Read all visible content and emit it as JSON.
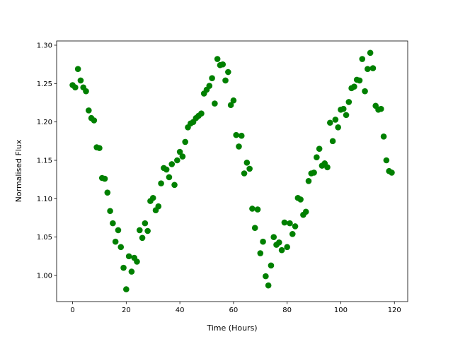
{
  "chart_data": {
    "type": "scatter",
    "xlabel": "Time (Hours)",
    "ylabel": "Normalised Flux",
    "color": "#008000",
    "x": [
      0,
      1,
      2,
      3,
      4,
      5,
      6,
      7,
      8,
      9,
      10,
      11,
      12,
      13,
      14,
      15,
      16,
      17,
      18,
      19,
      20,
      21,
      22,
      23,
      24,
      25,
      26,
      27,
      28,
      29,
      30,
      31,
      32,
      33,
      34,
      35,
      36,
      37,
      38,
      39,
      40,
      41,
      42,
      43,
      44,
      45,
      46,
      47,
      48,
      49,
      50,
      51,
      52,
      53,
      54,
      55,
      56,
      57,
      58,
      59,
      60,
      61,
      62,
      63,
      64,
      65,
      66,
      67,
      68,
      69,
      70,
      71,
      72,
      73,
      74,
      75,
      76,
      77,
      78,
      79,
      80,
      81,
      82,
      83,
      84,
      85,
      86,
      87,
      88,
      89,
      90,
      91,
      92,
      93,
      94,
      95,
      96,
      97,
      98,
      99,
      100,
      101,
      102,
      103,
      104,
      105,
      106,
      107,
      108,
      109,
      110,
      111,
      112,
      113,
      114,
      115,
      116,
      117,
      118,
      119
    ],
    "values": [
      1.248,
      1.245,
      1.269,
      1.254,
      1.245,
      1.24,
      1.215,
      1.205,
      1.202,
      1.167,
      1.166,
      1.127,
      1.126,
      1.108,
      1.084,
      1.068,
      1.044,
      1.059,
      1.037,
      1.01,
      0.982,
      1.025,
      1.005,
      1.023,
      1.018,
      1.059,
      1.049,
      1.068,
      1.058,
      1.097,
      1.101,
      1.085,
      1.09,
      1.12,
      1.14,
      1.138,
      1.128,
      1.145,
      1.118,
      1.15,
      1.161,
      1.155,
      1.174,
      1.193,
      1.198,
      1.2,
      1.205,
      1.208,
      1.211,
      1.237,
      1.242,
      1.247,
      1.257,
      1.224,
      1.282,
      1.274,
      1.275,
      1.254,
      1.265,
      1.222,
      1.228,
      1.183,
      1.168,
      1.182,
      1.133,
      1.147,
      1.139,
      1.087,
      1.062,
      1.086,
      1.029,
      1.044,
      0.999,
      0.987,
      1.013,
      1.05,
      1.04,
      1.043,
      1.033,
      1.069,
      1.037,
      1.068,
      1.054,
      1.064,
      1.101,
      1.099,
      1.079,
      1.083,
      1.123,
      1.133,
      1.134,
      1.154,
      1.165,
      1.143,
      1.146,
      1.141,
      1.199,
      1.175,
      1.203,
      1.193,
      1.216,
      1.217,
      1.209,
      1.226,
      1.244,
      1.246,
      1.255,
      1.254,
      1.282,
      1.24,
      1.269,
      1.29,
      1.27,
      1.221,
      1.216,
      1.217,
      1.181,
      1.15,
      1.136,
      1.134
    ],
    "xlim": [
      -5.95,
      124.95
    ],
    "ylim": [
      0.966,
      1.3055
    ],
    "xticks": [
      0,
      20,
      40,
      60,
      80,
      100,
      120
    ],
    "yticks": [
      {
        "value": 1.0,
        "label": "1.00"
      },
      {
        "value": 1.05,
        "label": "1.05"
      },
      {
        "value": 1.1,
        "label": "1.10"
      },
      {
        "value": 1.15,
        "label": "1.15"
      },
      {
        "value": 1.2,
        "label": "1.20"
      },
      {
        "value": 1.25,
        "label": "1.25"
      },
      {
        "value": 1.3,
        "label": "1.30"
      }
    ]
  }
}
